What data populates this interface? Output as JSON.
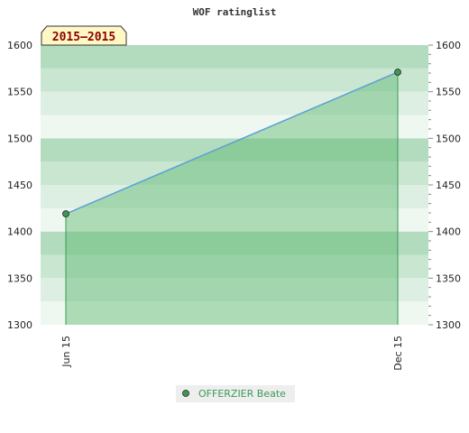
{
  "chart_data": {
    "type": "area",
    "title": "WOF ratinglist",
    "period_badge": "2015–2015",
    "x": [
      "Jun 15",
      "Dec 15"
    ],
    "series": [
      {
        "name": "OFFERZIER Beate",
        "values": [
          1419,
          1571
        ]
      }
    ],
    "ylim": [
      1300,
      1600
    ],
    "y_ticks": [
      1300,
      1350,
      1400,
      1450,
      1500,
      1550,
      1600
    ],
    "y_axis_sides": "both",
    "grid": "alternating horizontal bands",
    "legend_position": "bottom-center",
    "xlabel": "",
    "ylabel": ""
  },
  "colors": {
    "band_dark": "#b3dcbf",
    "band_mid": "#c9e6d1",
    "band_light": "#dcefe2",
    "band_lightest": "#eef7f0",
    "area_fill": "#5db86e",
    "line": "#5a9fd6",
    "marker": "#3e9653",
    "badge_bg": "#fff8c4",
    "legend_bg": "#eeeeee"
  }
}
